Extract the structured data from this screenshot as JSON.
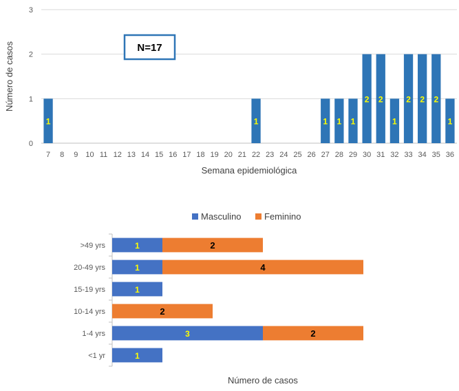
{
  "chart_data": [
    {
      "type": "bar",
      "orientation": "vertical",
      "title": "",
      "xlabel": "Semana epidemiológica",
      "ylabel": "Número de casos",
      "ylim": [
        0,
        3
      ],
      "yticks": [
        "0",
        "1",
        "2",
        "3"
      ],
      "grid": true,
      "categories": [
        "7",
        "8",
        "9",
        "10",
        "11",
        "12",
        "13",
        "14",
        "15",
        "16",
        "17",
        "18",
        "19",
        "20",
        "21",
        "22",
        "23",
        "24",
        "25",
        "26",
        "27",
        "28",
        "29",
        "30",
        "31",
        "32",
        "33",
        "34",
        "35",
        "36"
      ],
      "values": [
        1,
        0,
        0,
        0,
        0,
        0,
        0,
        0,
        0,
        0,
        0,
        0,
        0,
        0,
        0,
        1,
        0,
        0,
        0,
        0,
        1,
        1,
        1,
        2,
        2,
        1,
        2,
        2,
        2,
        1
      ],
      "data_labels": [
        "1",
        "",
        "",
        "",
        "",
        "",
        "",
        "",
        "",
        "",
        "",
        "",
        "",
        "",
        "",
        "1",
        "",
        "",
        "",
        "",
        "1",
        "1",
        "1",
        "2",
        "2",
        "1",
        "2",
        "2",
        "2",
        "1"
      ],
      "annotation": "N=17",
      "colors": {
        "bar": "#2E75B6",
        "label": "#FFFF00",
        "annotation_border": "#2E75B6"
      }
    },
    {
      "type": "bar",
      "orientation": "horizontal",
      "stacked": true,
      "title": "",
      "xlabel": "Número de casos",
      "ylabel": "",
      "xlim": [
        0,
        5
      ],
      "grid": false,
      "legend": "top",
      "categories": [
        ">49 yrs",
        "20-49 yrs",
        "15-19 yrs",
        "10-14 yrs",
        "1-4 yrs",
        "<1 yr"
      ],
      "series": [
        {
          "name": "Masculino",
          "values": [
            1,
            1,
            1,
            0,
            3,
            1
          ],
          "color": "#4472C4",
          "labels": [
            "1",
            "1",
            "1",
            "",
            "3",
            "1"
          ]
        },
        {
          "name": "Feminino",
          "values": [
            2,
            4,
            0,
            2,
            2,
            0
          ],
          "color": "#ED7D31",
          "labels": [
            "2",
            "4",
            "",
            "2",
            "2",
            ""
          ]
        }
      ]
    }
  ]
}
